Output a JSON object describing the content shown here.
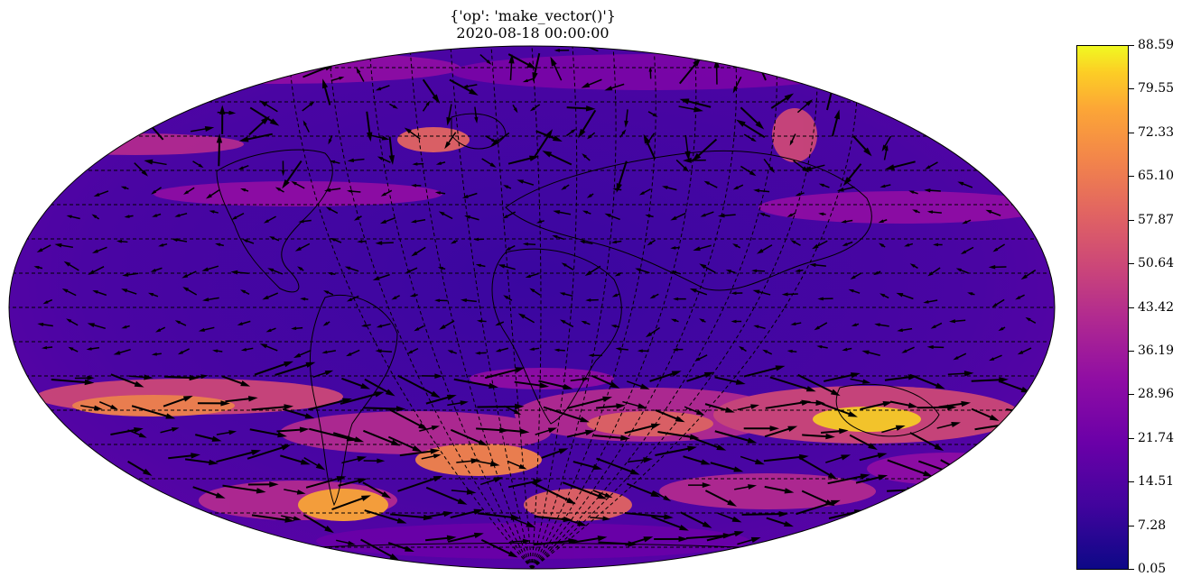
{
  "title": {
    "line1": "{'op': 'make_vector()'}",
    "line2": "2020-08-18 00:00:00"
  },
  "map": {
    "projection": "mollweide",
    "colormap": "plasma",
    "features": [
      "coastlines",
      "country-borders",
      "graticule",
      "wind-vectors"
    ]
  },
  "colorbar": {
    "ticks": [
      "88.59",
      "79.55",
      "72.33",
      "65.10",
      "57.87",
      "50.64",
      "43.42",
      "36.19",
      "28.96",
      "21.74",
      "14.51",
      "7.28",
      "0.05"
    ],
    "min": 0.05,
    "max": 88.59,
    "colors": [
      "#0d0887",
      "#6a00a8",
      "#b12a90",
      "#e16462",
      "#fca636",
      "#f0f921"
    ]
  }
}
